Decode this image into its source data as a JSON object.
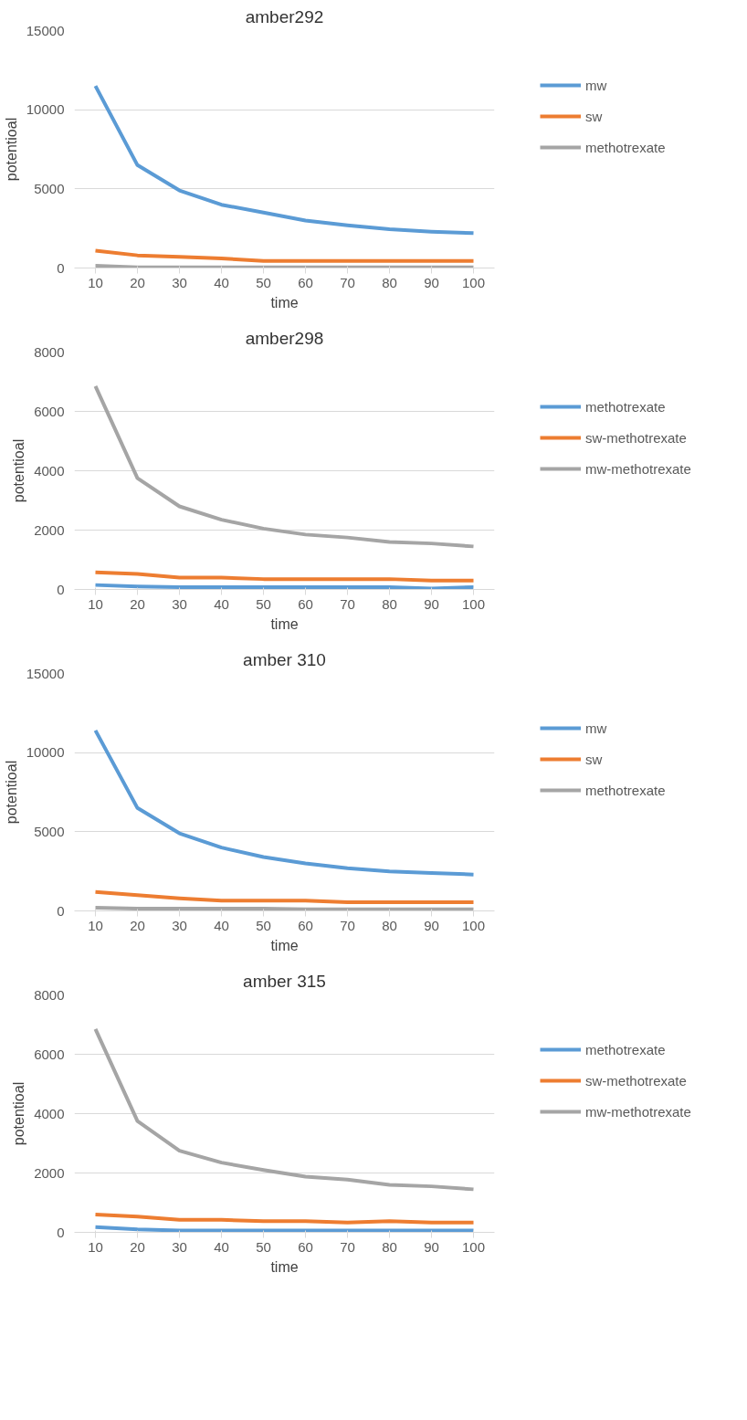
{
  "chart_data": [
    {
      "type": "line",
      "title": "amber292",
      "xlabel": "time",
      "ylabel": "potentioal",
      "categories": [
        "10",
        "20",
        "30",
        "40",
        "50",
        "60",
        "70",
        "80",
        "90",
        "100"
      ],
      "ylim": [
        0,
        15000
      ],
      "yticks": [
        0,
        5000,
        10000,
        15000
      ],
      "grid": "y",
      "legend": "right",
      "series": [
        {
          "name": "mw",
          "color": "#5b9bd5",
          "values": [
            11500,
            6500,
            4900,
            4000,
            3500,
            3000,
            2700,
            2450,
            2300,
            2200
          ]
        },
        {
          "name": "sw",
          "color": "#ed7d31",
          "values": [
            1100,
            800,
            700,
            600,
            450,
            450,
            450,
            450,
            450,
            450
          ]
        },
        {
          "name": "methotrexate",
          "color": "#a5a5a5",
          "values": [
            150,
            50,
            50,
            50,
            50,
            50,
            50,
            50,
            50,
            50
          ]
        }
      ]
    },
    {
      "type": "line",
      "title": "amber298",
      "xlabel": "time",
      "ylabel": "potentioal",
      "categories": [
        "10",
        "20",
        "30",
        "40",
        "50",
        "60",
        "70",
        "80",
        "90",
        "100"
      ],
      "ylim": [
        0,
        8000
      ],
      "yticks": [
        0,
        2000,
        4000,
        6000,
        8000
      ],
      "grid": "y",
      "legend": "right",
      "series": [
        {
          "name": "methotrexate",
          "color": "#5b9bd5",
          "values": [
            150,
            100,
            80,
            80,
            80,
            80,
            80,
            80,
            30,
            80
          ]
        },
        {
          "name": "sw-methotrexate",
          "color": "#ed7d31",
          "values": [
            580,
            520,
            400,
            400,
            350,
            350,
            350,
            350,
            300,
            300
          ]
        },
        {
          "name": "mw-methotrexate",
          "color": "#a5a5a5",
          "values": [
            6850,
            3750,
            2800,
            2350,
            2050,
            1850,
            1750,
            1600,
            1550,
            1450
          ]
        }
      ]
    },
    {
      "type": "line",
      "title": "amber 310",
      "xlabel": "time",
      "ylabel": "potentioal",
      "categories": [
        "10",
        "20",
        "30",
        "40",
        "50",
        "60",
        "70",
        "80",
        "90",
        "100"
      ],
      "ylim": [
        0,
        15000
      ],
      "yticks": [
        0,
        5000,
        10000,
        15000
      ],
      "grid": "y",
      "legend": "right",
      "series": [
        {
          "name": "mw",
          "color": "#5b9bd5",
          "values": [
            11400,
            6500,
            4900,
            4000,
            3400,
            3000,
            2700,
            2500,
            2400,
            2300
          ]
        },
        {
          "name": "sw",
          "color": "#ed7d31",
          "values": [
            1200,
            1000,
            800,
            650,
            650,
            650,
            550,
            550,
            550,
            550
          ]
        },
        {
          "name": "methotrexate",
          "color": "#a5a5a5",
          "values": [
            200,
            150,
            150,
            150,
            150,
            100,
            100,
            100,
            100,
            100
          ]
        }
      ]
    },
    {
      "type": "line",
      "title": "amber 315",
      "xlabel": "time",
      "ylabel": "potentioal",
      "categories": [
        "10",
        "20",
        "30",
        "40",
        "50",
        "60",
        "70",
        "80",
        "90",
        "100"
      ],
      "ylim": [
        0,
        8000
      ],
      "yticks": [
        0,
        2000,
        4000,
        6000,
        8000
      ],
      "grid": "y",
      "legend": "right",
      "series": [
        {
          "name": "methotrexate",
          "color": "#5b9bd5",
          "values": [
            180,
            100,
            60,
            60,
            60,
            60,
            60,
            60,
            60,
            60
          ]
        },
        {
          "name": "sw-methotrexate",
          "color": "#ed7d31",
          "values": [
            600,
            530,
            420,
            420,
            380,
            380,
            330,
            380,
            330,
            330
          ]
        },
        {
          "name": "mw-methotrexate",
          "color": "#a5a5a5",
          "values": [
            6850,
            3750,
            2750,
            2350,
            2100,
            1880,
            1780,
            1600,
            1550,
            1450
          ]
        }
      ]
    }
  ]
}
